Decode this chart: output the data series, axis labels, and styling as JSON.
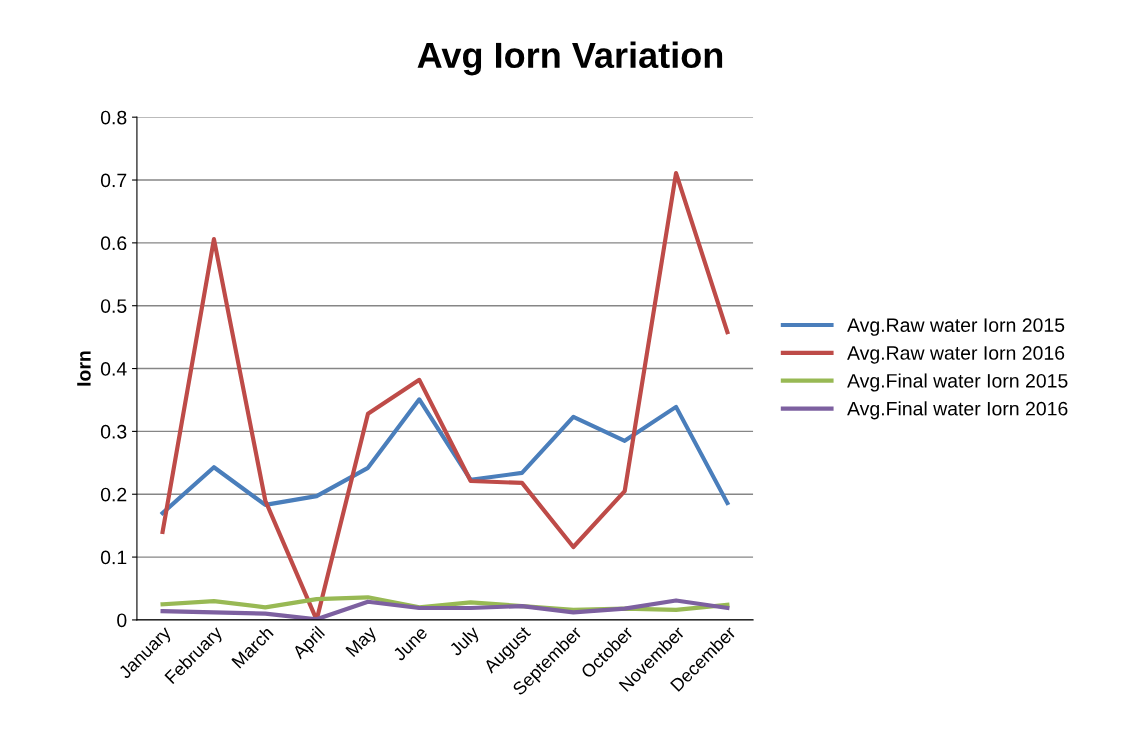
{
  "chart_data": {
    "type": "line",
    "title": "Avg Iorn Variation",
    "ylabel": "Iorn",
    "categories": [
      "January",
      "February",
      "March",
      "April",
      "May",
      "June",
      "July",
      "August",
      "September",
      "October",
      "November",
      "December"
    ],
    "series": [
      {
        "name": "Avg.Raw water Iorn 2015",
        "color": "#4a7ebb",
        "values": [
          0.17,
          0.243,
          0.183,
          0.197,
          0.242,
          0.351,
          0.223,
          0.234,
          0.323,
          0.285,
          0.339,
          0.186
        ]
      },
      {
        "name": "Avg.Raw water Iorn 2016",
        "color": "#be4b48",
        "values": [
          0.14,
          0.606,
          0.19,
          0.0,
          0.328,
          0.382,
          0.221,
          0.218,
          0.116,
          0.205,
          0.711,
          0.458
        ]
      },
      {
        "name": "Avg.Final water Iorn 2015",
        "color": "#98b954",
        "values": [
          0.025,
          0.03,
          0.02,
          0.033,
          0.036,
          0.02,
          0.028,
          0.022,
          0.016,
          0.018,
          0.016,
          0.024
        ]
      },
      {
        "name": "Avg.Final water Iorn 2016",
        "color": "#7d60a0",
        "values": [
          0.014,
          0.012,
          0.01,
          0.001,
          0.029,
          0.019,
          0.019,
          0.022,
          0.012,
          0.018,
          0.031,
          0.019
        ]
      }
    ],
    "ylim": [
      0,
      0.8
    ],
    "yticks": [
      0,
      0.1,
      0.2,
      0.3,
      0.4,
      0.5,
      0.6,
      0.7,
      0.8
    ],
    "grid": "y",
    "legend": "right",
    "marker": "none",
    "line_style": "solid"
  }
}
